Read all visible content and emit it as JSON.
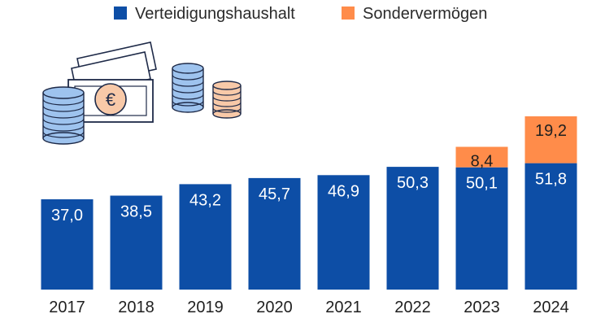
{
  "chart_data": {
    "type": "bar",
    "stacked": true,
    "categories": [
      "2017",
      "2018",
      "2019",
      "2020",
      "2021",
      "2022",
      "2023",
      "2024"
    ],
    "series": [
      {
        "name": "Verteidigungshaushalt",
        "color": "#0d4ea6",
        "values": [
          37.0,
          38.5,
          43.2,
          45.7,
          46.9,
          50.3,
          50.1,
          51.8
        ],
        "labels": [
          "37,0",
          "38,5",
          "43,2",
          "45,7",
          "46,9",
          "50,3",
          "50,1",
          "51,8"
        ]
      },
      {
        "name": "Sondervermögen",
        "color": "#ff8c4a",
        "values": [
          null,
          null,
          null,
          null,
          null,
          null,
          8.4,
          19.2
        ],
        "labels": [
          "",
          "",
          "",
          "",
          "",
          "",
          "8,4",
          "19,2"
        ]
      }
    ],
    "legend_position": "top",
    "grid": false,
    "ylim": [
      0,
      75
    ],
    "title": "",
    "xlabel": "",
    "ylabel": ""
  },
  "illustration": {
    "icons": [
      "coin-stack-icon",
      "banknote-icon",
      "euro-icon"
    ],
    "currency_symbol": "€"
  }
}
